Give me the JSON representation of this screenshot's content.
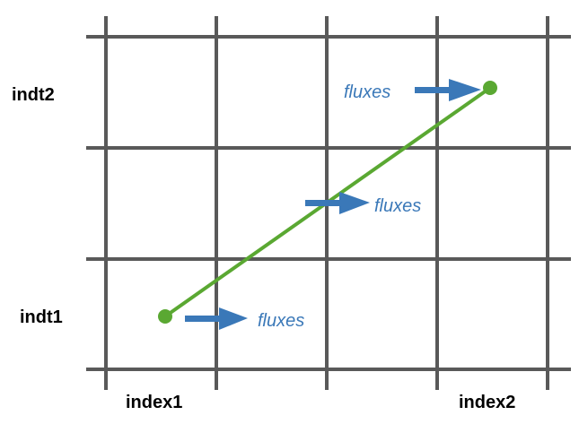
{
  "labels": {
    "row_top": "indt2",
    "row_bottom": "indt1",
    "col_left": "index1",
    "col_right": "index2"
  },
  "flux_labels": {
    "top": "fluxes",
    "middle": "fluxes",
    "bottom": "fluxes"
  },
  "colors": {
    "grid": "#595959",
    "path": "#5aa832",
    "arrow": "#3a78b8",
    "flux_text": "#3a78b8"
  }
}
